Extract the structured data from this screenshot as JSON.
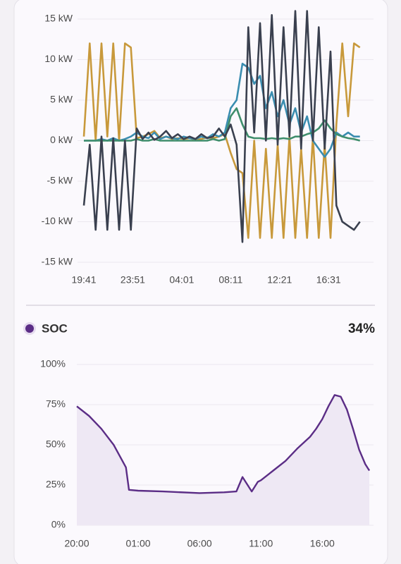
{
  "chart_data": [
    {
      "type": "line",
      "x": [
        "19:41",
        "20:11",
        "20:41",
        "21:11",
        "21:41",
        "22:11",
        "22:41",
        "23:11",
        "23:41",
        "00:11",
        "00:41",
        "01:11",
        "01:41",
        "02:11",
        "02:41",
        "03:11",
        "03:41",
        "04:11",
        "04:41",
        "05:11",
        "05:41",
        "06:11",
        "06:41",
        "07:11",
        "07:41",
        "08:11",
        "08:41",
        "09:11",
        "09:41",
        "10:11",
        "10:41",
        "11:11",
        "11:41",
        "12:11",
        "12:41",
        "13:11",
        "13:41",
        "14:11",
        "14:41",
        "15:11",
        "15:41",
        "16:11",
        "16:41",
        "17:11",
        "17:41",
        "18:11",
        "18:41",
        "19:11"
      ],
      "series": [
        {
          "color": "#c8993b",
          "values": [
            0.5,
            12,
            0,
            12,
            0.5,
            12,
            0,
            12,
            11.5,
            0.3,
            0.5,
            0.8,
            1.2,
            0.3,
            0.5,
            0.2,
            0.3,
            0.2,
            0.3,
            0.1,
            0.2,
            0.4,
            0.3,
            0.5,
            0.8,
            -1.5,
            -3.5,
            -4,
            -12,
            0,
            -12,
            -1,
            -12,
            -0.5,
            -12,
            0.5,
            -12,
            -1,
            -12,
            0.5,
            -12,
            -0.5,
            -12,
            2,
            12,
            3,
            12,
            11.5
          ]
        },
        {
          "color": "#3a8db0",
          "values": [
            0,
            0,
            0,
            0.2,
            0,
            0.3,
            0,
            0.2,
            0.5,
            1,
            0.5,
            0.3,
            1,
            0.2,
            0.5,
            0.3,
            0.2,
            0.5,
            0.3,
            0.2,
            0.5,
            0.3,
            0.8,
            0.5,
            1,
            4,
            5,
            9.5,
            9,
            7,
            8,
            4,
            6,
            3,
            5,
            2,
            4,
            1,
            3,
            0,
            -1,
            -2,
            -1,
            1,
            0.5,
            1,
            0.5,
            0.5
          ]
        },
        {
          "color": "#3f8e6c",
          "values": [
            0,
            0,
            0,
            0,
            0,
            0,
            0,
            0,
            0,
            0.2,
            0,
            0,
            0.2,
            0,
            0,
            0,
            0,
            0,
            0,
            0,
            0,
            0,
            0.2,
            0,
            0.2,
            3,
            4,
            2,
            0.5,
            0.3,
            0.3,
            0.2,
            0.3,
            0.2,
            0.3,
            0.2,
            0.5,
            0.5,
            0.8,
            1,
            1.5,
            2.5,
            1.5,
            0.8,
            0.5,
            0.3,
            0.2,
            0
          ]
        },
        {
          "color": "#3a404f",
          "values": [
            -8,
            -0.5,
            -11,
            0.5,
            -11,
            0.3,
            -11,
            0,
            -11,
            1.5,
            0.2,
            1,
            0.1,
            0.5,
            1.2,
            0.3,
            0.8,
            0.2,
            0.5,
            0.2,
            0.8,
            0.3,
            0.5,
            1.5,
            0.5,
            2,
            -0.5,
            -12.5,
            14,
            1,
            14.5,
            0,
            15.5,
            -0.5,
            14,
            0.5,
            16,
            -1,
            16,
            0,
            14,
            -1,
            11,
            -8,
            -10,
            -10.5,
            -11,
            -10
          ]
        }
      ],
      "xlim": [
        "19:41",
        "19:41"
      ],
      "xticks": [
        "19:41",
        "23:51",
        "04:01",
        "08:11",
        "12:21",
        "16:31"
      ],
      "ylim": [
        -15,
        15
      ],
      "yticks": [
        {
          "value": -15,
          "label": "-15 kW"
        },
        {
          "value": -10,
          "label": "-10 kW"
        },
        {
          "value": -5,
          "label": "-5 kW"
        },
        {
          "value": 0,
          "label": "0 kW"
        },
        {
          "value": 5,
          "label": "5 kW"
        },
        {
          "value": 10,
          "label": "10 kW"
        },
        {
          "value": 15,
          "label": "15 kW"
        }
      ],
      "grid": true
    },
    {
      "type": "area",
      "current": {
        "value": 34,
        "label": "34%"
      },
      "x": [
        "20:00",
        "21:00",
        "22:00",
        "23:00",
        "00:00",
        "00:15",
        "01:00",
        "03:00",
        "06:00",
        "08:00",
        "09:00",
        "09:30",
        "10:15",
        "10:45",
        "11:00",
        "12:00",
        "13:00",
        "14:00",
        "15:00",
        "15:30",
        "16:00",
        "16:30",
        "17:00",
        "17:30",
        "18:00",
        "18:30",
        "19:00",
        "19:30",
        "19:50"
      ],
      "series": [
        {
          "name": "SOC",
          "color": "#5b2d86",
          "fill": "#eee8f4",
          "values": [
            74,
            68,
            60,
            50,
            36,
            22,
            21.5,
            21,
            20,
            20.5,
            21,
            30,
            21,
            27,
            28,
            34,
            40,
            48,
            55,
            60,
            66,
            74,
            81,
            80,
            72,
            60,
            47,
            38,
            34
          ]
        }
      ],
      "xlim": [
        "20:00",
        "20:00"
      ],
      "xticks": [
        "20:00",
        "01:00",
        "06:00",
        "11:00",
        "16:00"
      ],
      "ylim": [
        0,
        100
      ],
      "yticks": [
        {
          "value": 0,
          "label": "0%"
        },
        {
          "value": 25,
          "label": "25%"
        },
        {
          "value": 50,
          "label": "50%"
        },
        {
          "value": 75,
          "label": "75%"
        },
        {
          "value": 100,
          "label": "100%"
        }
      ],
      "grid": true
    }
  ]
}
